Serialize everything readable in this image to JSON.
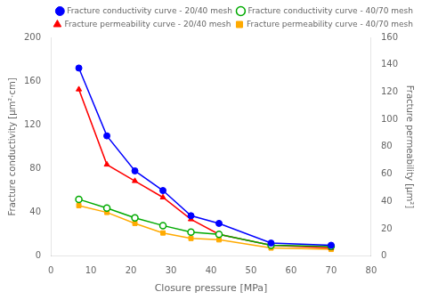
{
  "chart_data": {
    "type": "line",
    "xlabel": "Closure pressure [MPa]",
    "ylabel": "Fracture conductivity [μm²·cm]",
    "y2label": "Fracture permeability [μm²]",
    "x": [
      7,
      14,
      21,
      28,
      35,
      42,
      55,
      70
    ],
    "series": [
      {
        "name": "Fracture conductivity curve - 20/40 mesh",
        "color": "#0000FF",
        "marker": "circle",
        "values": [
          172,
          110,
          78,
          60,
          37,
          30,
          12,
          10
        ]
      },
      {
        "name": "Fracture conductivity curve - 40/70 mesh",
        "color": "#00AA00",
        "marker": "open_circle",
        "values": [
          52,
          44,
          35,
          28,
          22,
          20,
          10,
          9
        ]
      },
      {
        "name": "Fracture permeability curve - 20/40 mesh",
        "color": "#FF0000",
        "marker": "triangle",
        "axis": "y2",
        "values": [
          122,
          67,
          55,
          43,
          27,
          16,
          8,
          6
        ]
      },
      {
        "name": "Fracture permeability curve - 40/70 mesh",
        "color": "#FFAA00",
        "marker": "square",
        "axis": "y2",
        "values": [
          37,
          32,
          24,
          17,
          13,
          12,
          6,
          5
        ]
      }
    ],
    "xlim": [
      0,
      80
    ],
    "xticks": [
      0,
      10,
      20,
      30,
      40,
      50,
      60,
      70,
      80
    ],
    "ylim": [
      0,
      200
    ],
    "yticks": [
      0,
      40,
      80,
      120,
      160,
      200
    ],
    "y2lim": [
      0,
      160
    ],
    "y2ticks": [
      0,
      20,
      40,
      60,
      80,
      100,
      120,
      140,
      160
    ],
    "grid": false,
    "legend": "upper right"
  }
}
